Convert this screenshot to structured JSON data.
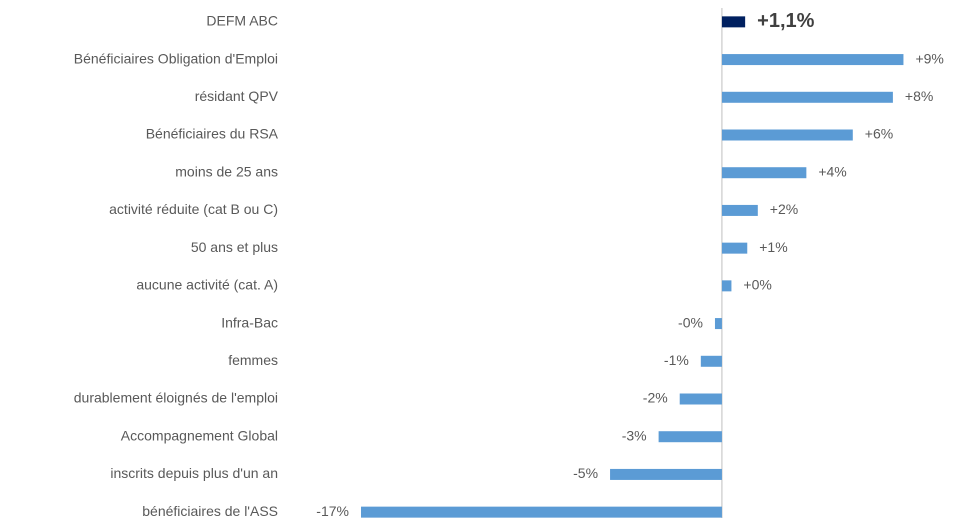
{
  "chart_data": {
    "type": "barh",
    "categories": [
      "DEFM ABC",
      "Bénéficiaires Obligation d'Emploi",
      "résidant QPV",
      "Bénéficiaires du RSA",
      "moins de 25 ans",
      "activité réduite (cat B ou C)",
      "50 ans et plus",
      "aucune activité (cat. A)",
      "Infra-Bac",
      "femmes",
      "durablement éloignés de l'emploi",
      "Accompagnement Global",
      "inscrits depuis plus d'un an",
      "bénéficiaires de l'ASS"
    ],
    "values": [
      1.1,
      8.6,
      8.1,
      6.2,
      4.0,
      1.7,
      1.2,
      0.45,
      -0.33,
      -1.0,
      -2.0,
      -3.0,
      -5.3,
      -17.1
    ],
    "value_labels": [
      "+1,1%",
      "+9%",
      "+8%",
      "+6%",
      "+4%",
      "+2%",
      "+1%",
      "+0%",
      "-0%",
      "-1%",
      "-2%",
      "-3%",
      "-5%",
      "-17%"
    ],
    "colors": [
      "#002060",
      "#5b9bd5",
      "#5b9bd5",
      "#5b9bd5",
      "#5b9bd5",
      "#5b9bd5",
      "#5b9bd5",
      "#5b9bd5",
      "#5b9bd5",
      "#5b9bd5",
      "#5b9bd5",
      "#5b9bd5",
      "#5b9bd5",
      "#5b9bd5"
    ],
    "xlim": [
      -18,
      10
    ]
  }
}
